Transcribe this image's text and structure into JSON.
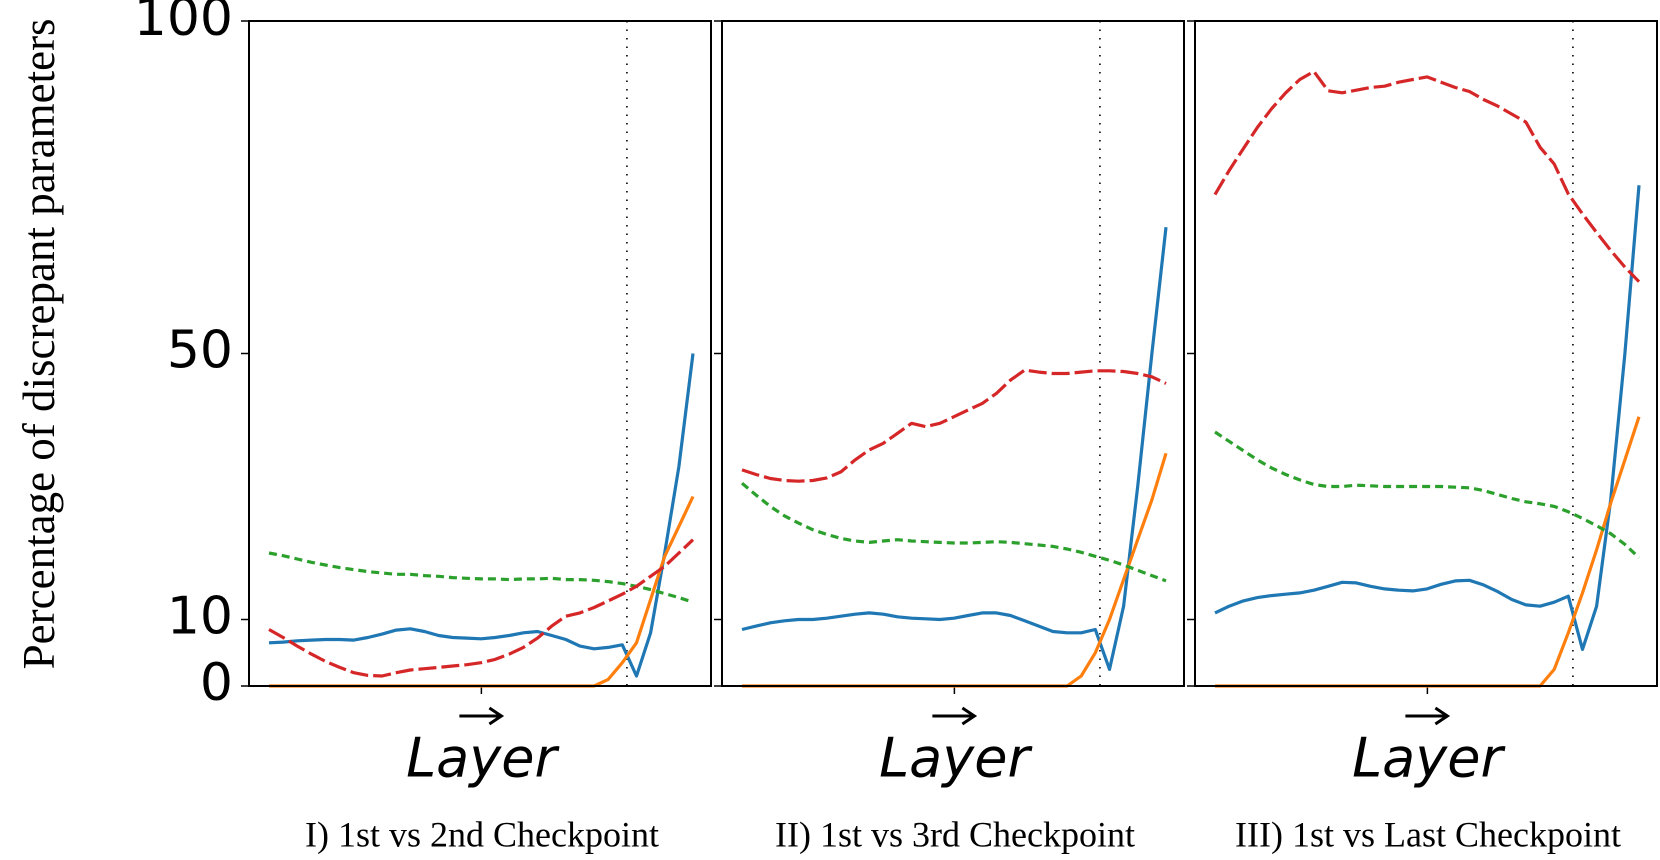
{
  "chart_data": [
    {
      "type": "line",
      "ylabel": "Percentage of discrepant parameters",
      "xlabel": "Layer",
      "subtitle": "I) 1st vs 2nd Checkpoint",
      "ylim": [
        0,
        100
      ],
      "yticks": [
        0,
        10,
        50,
        100
      ],
      "series": [
        {
          "color": "#1f77b4",
          "dash": "none",
          "values": [
            6.5,
            6.6,
            6.8,
            6.9,
            7.0,
            7.0,
            6.9,
            7.3,
            7.8,
            8.4,
            8.6,
            8.2,
            7.6,
            7.3,
            7.2,
            7.1,
            7.3,
            7.6,
            8.0,
            8.2,
            7.6,
            7.0,
            6.0,
            5.6,
            5.8,
            6.2,
            1.5,
            8,
            20,
            33,
            50
          ]
        },
        {
          "color": "#ff7f0e",
          "dash": "none",
          "values": [
            0,
            0,
            0,
            0,
            0,
            0,
            0,
            0,
            0,
            0,
            0,
            0,
            0,
            0,
            0,
            0,
            0,
            0,
            0,
            0,
            0,
            0,
            0,
            0,
            1,
            3.5,
            6.5,
            13,
            19.5,
            24,
            28.5
          ]
        },
        {
          "color": "#2ca02c",
          "dash": "8,5",
          "values": [
            20,
            19.6,
            19.1,
            18.6,
            18.2,
            17.8,
            17.5,
            17.2,
            17.0,
            16.8,
            16.8,
            16.6,
            16.5,
            16.3,
            16.2,
            16.1,
            16.1,
            16.0,
            16.1,
            16.1,
            16.2,
            16.0,
            16.0,
            15.9,
            15.7,
            15.4,
            15.0,
            14.5,
            13.9,
            13.3,
            12.6
          ]
        },
        {
          "color": "#d62728",
          "dash": "18,5",
          "values": [
            8.5,
            7.3,
            6.0,
            4.8,
            3.7,
            2.8,
            2.0,
            1.6,
            1.5,
            2.0,
            2.4,
            2.6,
            2.8,
            3.0,
            3.2,
            3.5,
            4.0,
            4.8,
            5.8,
            7.2,
            9.0,
            10.5,
            11.0,
            11.8,
            12.8,
            13.8,
            15.0,
            16.5,
            18.0,
            20.0,
            22.0
          ]
        }
      ]
    },
    {
      "type": "line",
      "xlabel": "Layer",
      "subtitle": "II) 1st vs 3rd Checkpoint",
      "ylim": [
        0,
        100
      ],
      "yticks": [
        0,
        10,
        50,
        100
      ],
      "series": [
        {
          "color": "#1f77b4",
          "dash": "none",
          "values": [
            8.5,
            9.0,
            9.5,
            9.8,
            10.0,
            10.0,
            10.2,
            10.5,
            10.8,
            11.0,
            10.8,
            10.4,
            10.2,
            10.1,
            10.0,
            10.2,
            10.6,
            11.0,
            11.0,
            10.6,
            9.8,
            9.0,
            8.2,
            8.0,
            8.0,
            8.5,
            2.5,
            12,
            30,
            50,
            69
          ]
        },
        {
          "color": "#ff7f0e",
          "dash": "none",
          "values": [
            0,
            0,
            0,
            0,
            0,
            0,
            0,
            0,
            0,
            0,
            0,
            0,
            0,
            0,
            0,
            0,
            0,
            0,
            0,
            0,
            0,
            0,
            0,
            0,
            1.5,
            5,
            10,
            16,
            22,
            28,
            35
          ]
        },
        {
          "color": "#2ca02c",
          "dash": "8,5",
          "values": [
            30.5,
            28.7,
            27.0,
            25.6,
            24.5,
            23.5,
            22.8,
            22.2,
            21.8,
            21.6,
            21.8,
            22.0,
            21.8,
            21.7,
            21.6,
            21.5,
            21.5,
            21.6,
            21.7,
            21.6,
            21.4,
            21.2,
            21.0,
            20.6,
            20.1,
            19.5,
            18.9,
            18.2,
            17.4,
            16.6,
            15.8
          ]
        },
        {
          "color": "#d62728",
          "dash": "18,5",
          "values": [
            32.5,
            31.8,
            31.2,
            30.9,
            30.8,
            30.9,
            31.3,
            32.2,
            34.0,
            35.5,
            36.5,
            38.0,
            39.5,
            39.0,
            39.5,
            40.5,
            41.5,
            42.5,
            44.0,
            46.0,
            47.5,
            47.2,
            47.0,
            47.0,
            47.2,
            47.4,
            47.4,
            47.3,
            47.0,
            46.5,
            45.5
          ]
        }
      ]
    },
    {
      "type": "line",
      "xlabel": "Layer",
      "subtitle": "III) 1st vs Last Checkpoint",
      "ylim": [
        0,
        100
      ],
      "yticks": [
        0,
        10,
        50,
        100
      ],
      "series": [
        {
          "color": "#1f77b4",
          "dash": "none",
          "values": [
            11.0,
            12.0,
            12.8,
            13.3,
            13.6,
            13.8,
            14.0,
            14.4,
            15.0,
            15.6,
            15.5,
            15.0,
            14.6,
            14.4,
            14.3,
            14.6,
            15.3,
            15.8,
            15.9,
            15.2,
            14.2,
            13.0,
            12.2,
            12.0,
            12.6,
            13.5,
            5.5,
            12,
            28,
            50,
            75.3
          ]
        },
        {
          "color": "#ff7f0e",
          "dash": "none",
          "values": [
            0,
            0,
            0,
            0,
            0,
            0,
            0,
            0,
            0,
            0,
            0,
            0,
            0,
            0,
            0,
            0,
            0,
            0,
            0,
            0,
            0,
            0,
            0,
            0,
            2.5,
            8,
            14,
            20.5,
            27.5,
            34,
            40.5
          ]
        },
        {
          "color": "#2ca02c",
          "dash": "8,5",
          "values": [
            38.2,
            36.8,
            35.4,
            34.0,
            32.8,
            31.8,
            31.0,
            30.3,
            30.0,
            30.0,
            30.2,
            30.1,
            30.0,
            30.0,
            30.0,
            30.0,
            30.0,
            29.9,
            29.8,
            29.4,
            28.8,
            28.2,
            27.7,
            27.4,
            27.0,
            26.2,
            25.2,
            24.1,
            22.9,
            21.3,
            19.3
          ]
        },
        {
          "color": "#d62728",
          "dash": "18,5",
          "values": [
            73.9,
            77.5,
            80.8,
            84.0,
            86.8,
            89.2,
            91.2,
            92.4,
            89.5,
            89.2,
            89.6,
            90.0,
            90.2,
            90.8,
            91.2,
            91.6,
            90.8,
            90.0,
            89.4,
            88.2,
            87.2,
            86.0,
            84.8,
            81.0,
            78.5,
            74.0,
            71.0,
            68.2,
            65.5,
            63.0,
            60.8
          ]
        }
      ]
    }
  ]
}
